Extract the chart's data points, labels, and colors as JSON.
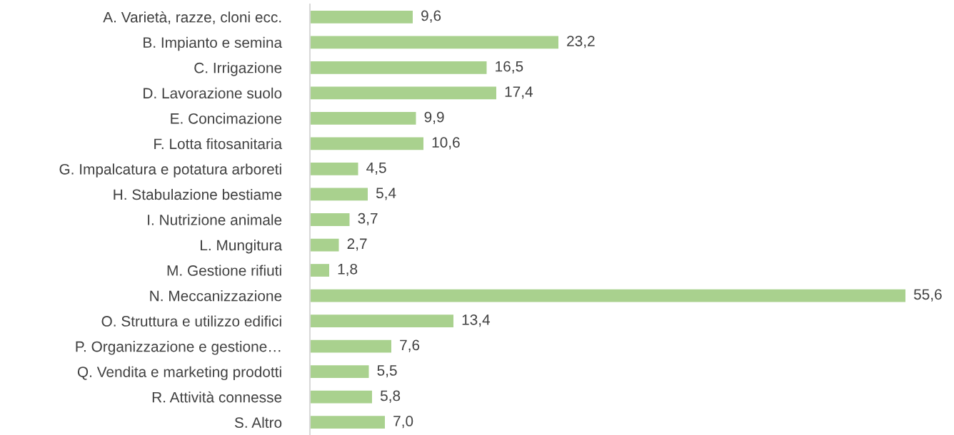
{
  "chart_data": {
    "type": "bar",
    "orientation": "horizontal",
    "categories": [
      "A. Varietà, razze, cloni ecc.",
      "B. Impianto e semina",
      "C. Irrigazione",
      "D. Lavorazione suolo",
      "E. Concimazione",
      "F. Lotta fitosanitaria",
      "G. Impalcatura e potatura arboreti",
      "H. Stabulazione bestiame",
      "I. Nutrizione animale",
      "L. Mungitura",
      "M. Gestione rifiuti",
      "N. Meccanizzazione",
      "O. Struttura e utilizzo edifici",
      "P. Organizzazione e gestione…",
      "Q. Vendita e marketing prodotti",
      "R. Attività connesse",
      "S. Altro"
    ],
    "values": [
      9.6,
      23.2,
      16.5,
      17.4,
      9.9,
      10.6,
      4.5,
      5.4,
      3.7,
      2.7,
      1.8,
      55.6,
      13.4,
      7.6,
      5.5,
      5.8,
      7.0
    ],
    "value_labels": [
      "9,6",
      "23,2",
      "16,5",
      "17,4",
      "9,9",
      "10,6",
      "4,5",
      "5,4",
      "3,7",
      "2,7",
      "1,8",
      "55,6",
      "13,4",
      "7,6",
      "5,5",
      "5,8",
      "7,0"
    ],
    "color": "#a9d18e",
    "grid": false,
    "legend": false
  }
}
